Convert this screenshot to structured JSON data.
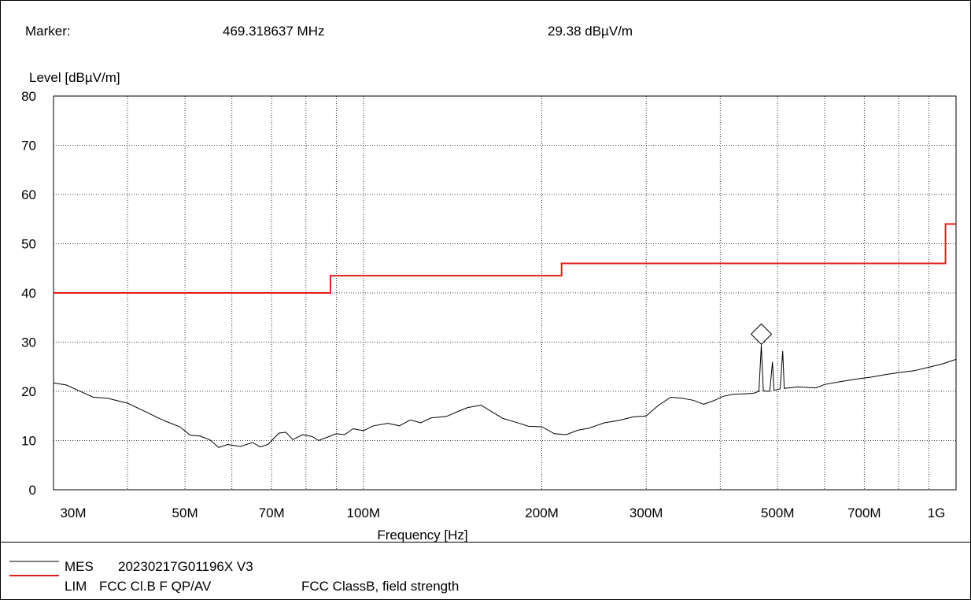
{
  "header": {
    "marker_label": "Marker:",
    "marker_frequency": "469.318637 MHz",
    "marker_level": "29.38 dBµV/m"
  },
  "chart_data": {
    "type": "line",
    "ylabel": "Level [dBµV/m]",
    "xlabel": "Frequency [Hz]",
    "xscale": "log",
    "xlim_mhz": [
      30,
      1000
    ],
    "ylim": [
      0,
      80
    ],
    "grid": true,
    "y_ticks": [
      "0",
      "10",
      "20",
      "30",
      "40",
      "50",
      "60",
      "70",
      "80"
    ],
    "x_ticks": [
      {
        "mhz": 30,
        "label": "30M"
      },
      {
        "mhz": 50,
        "label": "50M"
      },
      {
        "mhz": 70,
        "label": "70M"
      },
      {
        "mhz": 100,
        "label": "100M"
      },
      {
        "mhz": 200,
        "label": "200M"
      },
      {
        "mhz": 300,
        "label": "300M"
      },
      {
        "mhz": 500,
        "label": "500M"
      },
      {
        "mhz": 700,
        "label": "700M"
      },
      {
        "mhz": 1000,
        "label": "1G"
      }
    ],
    "x_grid_mhz": [
      40,
      60,
      80,
      90,
      400,
      600,
      800,
      900
    ],
    "series": [
      {
        "name": "MES",
        "color": "#000000",
        "points_mhz_db": [
          [
            30,
            21.7
          ],
          [
            31.5,
            21.3
          ],
          [
            33,
            20.2
          ],
          [
            35,
            18.8
          ],
          [
            37,
            18.6
          ],
          [
            40,
            17.6
          ],
          [
            43,
            15.8
          ],
          [
            46,
            14.1
          ],
          [
            49,
            12.8
          ],
          [
            51,
            11.1
          ],
          [
            53,
            10.9
          ],
          [
            55,
            10.2
          ],
          [
            57,
            8.6
          ],
          [
            59,
            9.2
          ],
          [
            62,
            8.8
          ],
          [
            65,
            9.6
          ],
          [
            67,
            8.7
          ],
          [
            69,
            9.2
          ],
          [
            72,
            11.5
          ],
          [
            74,
            11.7
          ],
          [
            76,
            10.2
          ],
          [
            79,
            11.2
          ],
          [
            82,
            10.8
          ],
          [
            84,
            10.0
          ],
          [
            87,
            10.7
          ],
          [
            90,
            11.4
          ],
          [
            93,
            11.2
          ],
          [
            96,
            12.4
          ],
          [
            100,
            12.0
          ],
          [
            104,
            13.0
          ],
          [
            110,
            13.5
          ],
          [
            115,
            13.0
          ],
          [
            120,
            14.2
          ],
          [
            125,
            13.6
          ],
          [
            130,
            14.6
          ],
          [
            138,
            14.9
          ],
          [
            145,
            16.0
          ],
          [
            150,
            16.7
          ],
          [
            158,
            17.2
          ],
          [
            165,
            15.8
          ],
          [
            172,
            14.5
          ],
          [
            180,
            13.8
          ],
          [
            190,
            12.9
          ],
          [
            200,
            12.8
          ],
          [
            210,
            11.4
          ],
          [
            220,
            11.2
          ],
          [
            230,
            12.1
          ],
          [
            240,
            12.5
          ],
          [
            255,
            13.6
          ],
          [
            270,
            14.1
          ],
          [
            285,
            14.8
          ],
          [
            300,
            15.0
          ],
          [
            315,
            17.2
          ],
          [
            330,
            18.8
          ],
          [
            345,
            18.6
          ],
          [
            360,
            18.2
          ],
          [
            375,
            17.4
          ],
          [
            390,
            18.1
          ],
          [
            405,
            19.0
          ],
          [
            420,
            19.4
          ],
          [
            440,
            19.5
          ],
          [
            455,
            19.6
          ],
          [
            465,
            20.0
          ],
          [
            469.3,
            29.4
          ],
          [
            473,
            20.1
          ],
          [
            485,
            20.0
          ],
          [
            490,
            26.0
          ],
          [
            493,
            20.2
          ],
          [
            505,
            20.5
          ],
          [
            510,
            28.2
          ],
          [
            513,
            20.6
          ],
          [
            540,
            20.9
          ],
          [
            580,
            20.7
          ],
          [
            600,
            21.4
          ],
          [
            640,
            22.0
          ],
          [
            680,
            22.5
          ],
          [
            720,
            22.9
          ],
          [
            760,
            23.4
          ],
          [
            800,
            23.8
          ],
          [
            850,
            24.2
          ],
          [
            900,
            24.9
          ],
          [
            950,
            25.6
          ],
          [
            1000,
            26.5
          ]
        ]
      },
      {
        "name": "LIM",
        "color": "#e31b1b",
        "points_mhz_db": [
          [
            30,
            40.0
          ],
          [
            88,
            40.0
          ],
          [
            88,
            43.5
          ],
          [
            216,
            43.5
          ],
          [
            216,
            46.0
          ],
          [
            960,
            46.0
          ],
          [
            960,
            54.0
          ],
          [
            1000,
            54.0
          ]
        ]
      }
    ]
  },
  "legend": {
    "items": [
      {
        "key": "MES",
        "text": "20230217G01196X V3",
        "extra": "",
        "color": "#000000"
      },
      {
        "key": "LIM",
        "text": "FCC Cl.B F QP/AV",
        "extra": "FCC ClassB, field strength",
        "color": "#e31b1b"
      }
    ]
  }
}
